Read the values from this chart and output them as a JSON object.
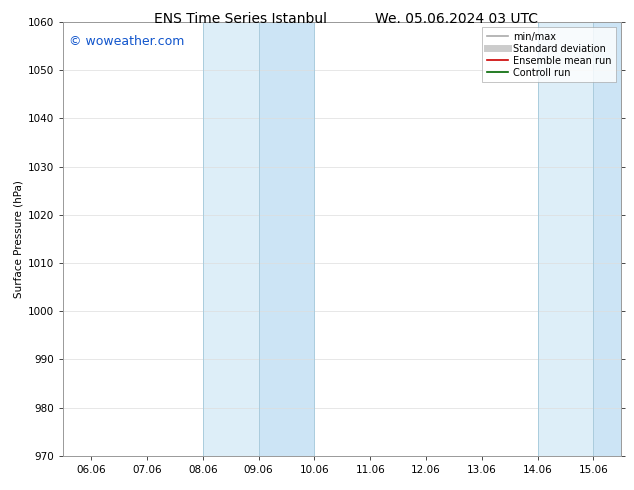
{
  "title_left": "ENS Time Series Istanbul",
  "title_right": "We. 05.06.2024 03 UTC",
  "ylabel": "Surface Pressure (hPa)",
  "watermark": "© woweather.com",
  "ylim": [
    970,
    1060
  ],
  "yticks": [
    970,
    980,
    990,
    1000,
    1010,
    1020,
    1030,
    1040,
    1050,
    1060
  ],
  "x_labels": [
    "06.06",
    "07.06",
    "08.06",
    "09.06",
    "10.06",
    "11.06",
    "12.06",
    "13.06",
    "14.06",
    "15.06"
  ],
  "x_positions": [
    0,
    1,
    2,
    3,
    4,
    5,
    6,
    7,
    8,
    9
  ],
  "xlim": [
    -0.5,
    9.5
  ],
  "shade_bands": [
    {
      "x_start": 2.0,
      "x_end": 3.0,
      "color": "#ddeef8"
    },
    {
      "x_start": 3.0,
      "x_end": 4.0,
      "color": "#cce4f5"
    },
    {
      "x_start": 8.0,
      "x_end": 9.0,
      "color": "#ddeef8"
    },
    {
      "x_start": 9.0,
      "x_end": 9.5,
      "color": "#cce4f5"
    }
  ],
  "vertical_lines": [
    {
      "x": 2.0,
      "color": "#aaccdd",
      "lw": 0.7
    },
    {
      "x": 3.0,
      "color": "#aaccdd",
      "lw": 0.7
    },
    {
      "x": 4.0,
      "color": "#aaccdd",
      "lw": 0.7
    },
    {
      "x": 8.0,
      "color": "#aaccdd",
      "lw": 0.7
    },
    {
      "x": 9.0,
      "color": "#aaccdd",
      "lw": 0.7
    }
  ],
  "background_color": "#ffffff",
  "legend_entries": [
    {
      "label": "min/max",
      "color": "#aaaaaa",
      "lw": 1.2,
      "style": "solid"
    },
    {
      "label": "Standard deviation",
      "color": "#cccccc",
      "lw": 5,
      "style": "solid"
    },
    {
      "label": "Ensemble mean run",
      "color": "#cc0000",
      "lw": 1.2,
      "style": "solid"
    },
    {
      "label": "Controll run",
      "color": "#006600",
      "lw": 1.2,
      "style": "solid"
    }
  ],
  "title_fontsize": 10,
  "tick_fontsize": 7.5,
  "ylabel_fontsize": 7.5,
  "watermark_color": "#1155cc",
  "watermark_fontsize": 9,
  "grid_color": "#dddddd",
  "spine_color": "#999999"
}
